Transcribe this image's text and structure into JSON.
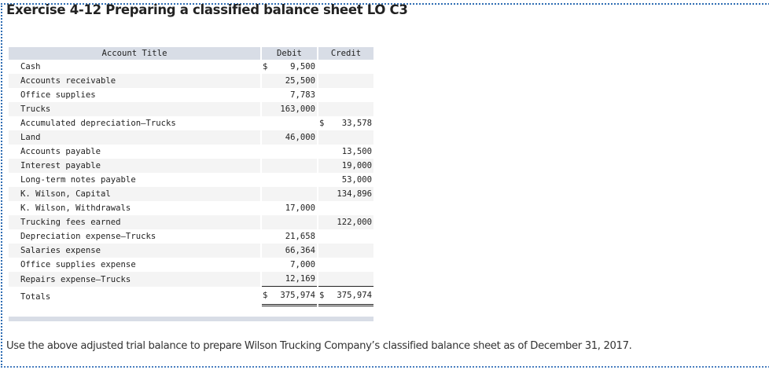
{
  "title": "Exercise 4-12 Preparing a classified balance sheet LO C3",
  "table": {
    "headers": {
      "account": "Account Title",
      "debit": "Debit",
      "credit": "Credit"
    },
    "rows": [
      {
        "account": "Cash",
        "debit_currency": "$",
        "debit": "9,500",
        "credit_currency": "",
        "credit": ""
      },
      {
        "account": "Accounts receivable",
        "debit_currency": "",
        "debit": "25,500",
        "credit_currency": "",
        "credit": ""
      },
      {
        "account": "Office supplies",
        "debit_currency": "",
        "debit": "7,783",
        "credit_currency": "",
        "credit": ""
      },
      {
        "account": "Trucks",
        "debit_currency": "",
        "debit": "163,000",
        "credit_currency": "",
        "credit": ""
      },
      {
        "account": "Accumulated depreciation—Trucks",
        "debit_currency": "",
        "debit": "",
        "credit_currency": "$",
        "credit": "33,578"
      },
      {
        "account": "Land",
        "debit_currency": "",
        "debit": "46,000",
        "credit_currency": "",
        "credit": ""
      },
      {
        "account": "Accounts payable",
        "debit_currency": "",
        "debit": "",
        "credit_currency": "",
        "credit": "13,500"
      },
      {
        "account": "Interest payable",
        "debit_currency": "",
        "debit": "",
        "credit_currency": "",
        "credit": "19,000"
      },
      {
        "account": "Long-term notes payable",
        "debit_currency": "",
        "debit": "",
        "credit_currency": "",
        "credit": "53,000"
      },
      {
        "account": "K. Wilson, Capital",
        "debit_currency": "",
        "debit": "",
        "credit_currency": "",
        "credit": "134,896"
      },
      {
        "account": "K. Wilson, Withdrawals",
        "debit_currency": "",
        "debit": "17,000",
        "credit_currency": "",
        "credit": ""
      },
      {
        "account": "Trucking fees earned",
        "debit_currency": "",
        "debit": "",
        "credit_currency": "",
        "credit": "122,000"
      },
      {
        "account": "Depreciation expense—Trucks",
        "debit_currency": "",
        "debit": "21,658",
        "credit_currency": "",
        "credit": ""
      },
      {
        "account": "Salaries expense",
        "debit_currency": "",
        "debit": "66,364",
        "credit_currency": "",
        "credit": ""
      },
      {
        "account": "Office supplies expense",
        "debit_currency": "",
        "debit": "7,000",
        "credit_currency": "",
        "credit": ""
      },
      {
        "account": "Repairs expense—Trucks",
        "debit_currency": "",
        "debit": "12,169",
        "credit_currency": "",
        "credit": ""
      }
    ],
    "totals": {
      "label": "Totals",
      "debit_currency": "$",
      "debit": "375,974",
      "credit_currency": "$",
      "credit": "375,974"
    }
  },
  "instruction": "Use the above adjusted trial balance to prepare Wilson Trucking Company’s classified balance sheet as of December 31, 2017.",
  "colors": {
    "header_bg": "#d8dde6",
    "stripe_bg": "#f4f4f4",
    "border_dotted": "#2f6db3"
  }
}
